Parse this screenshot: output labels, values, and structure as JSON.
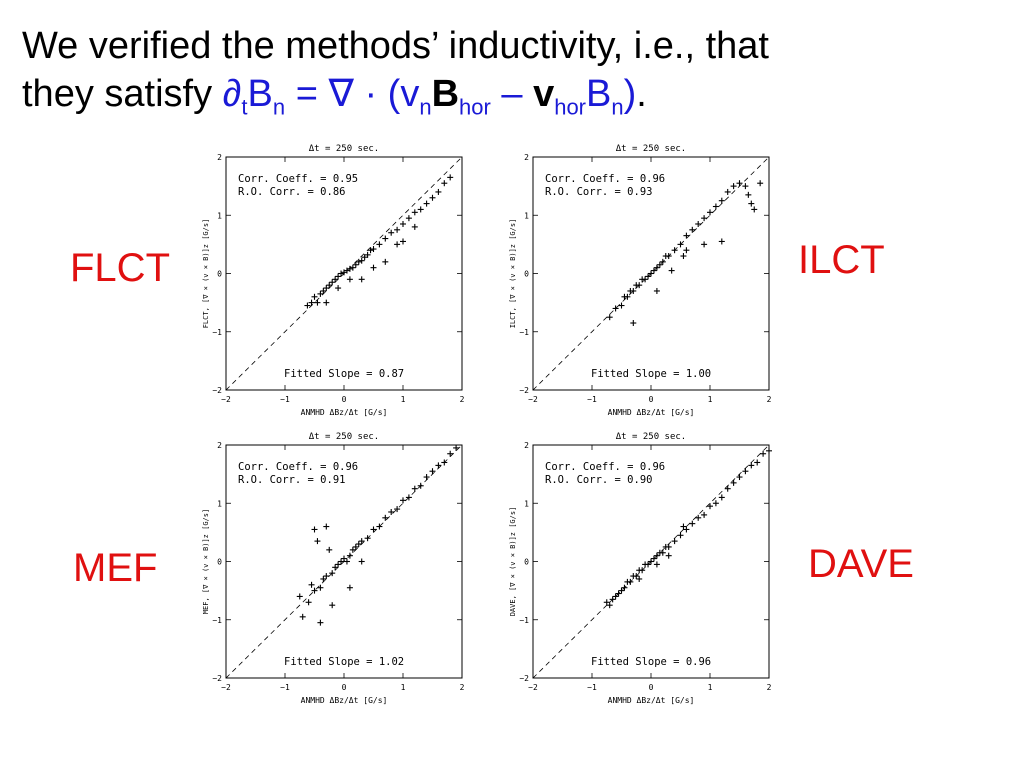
{
  "slide": {
    "title_line1": "We verified the methods’ inductivity, i.e., that",
    "title_line2_prefix": "they satisfy ",
    "eq": {
      "partial": "∂",
      "t_sub": "t",
      "B": "B",
      "n_sub": "n",
      "equals": " = ",
      "nabla_dot": "∇ · (",
      "v": "v",
      "n_sub2": "n",
      "Bbold": "B",
      "hor_sub": "hor",
      "minus": " – ",
      "vbold": "v",
      "hor_sub2": "hor",
      "B2": "B",
      "n_sub3": "n",
      "close": ")"
    },
    "title_end": "."
  },
  "labels": {
    "flct": "FLCT",
    "ilct": "ILCT",
    "mef": "MEF",
    "dave": "DAVE"
  },
  "chart_data": [
    {
      "type": "scatter",
      "method": "FLCT",
      "title": "Δt =  250 sec.",
      "xlabel": "ANMHD  ΔBz/Δt [G/s]",
      "ylabel": "FLCT, [∇ × (v × B)]z [G/s]",
      "xlim": [
        -2,
        2
      ],
      "ylim": [
        -2,
        2
      ],
      "xticks": [
        "−2",
        "−1",
        "0",
        "1",
        "2"
      ],
      "yticks": [
        "−2",
        "−1",
        "0",
        "1",
        "2"
      ],
      "annotations": [
        "Corr. Coeff. = 0.95",
        "R.O. Corr. = 0.86"
      ],
      "fit_label": "Fitted Slope = 0.87",
      "reference_line": "y = x (dashed)",
      "fitted_slope": 0.87,
      "points": [
        [
          -0.62,
          -0.55
        ],
        [
          -0.55,
          -0.5
        ],
        [
          -0.5,
          -0.4
        ],
        [
          -0.45,
          -0.5
        ],
        [
          -0.4,
          -0.35
        ],
        [
          -0.35,
          -0.3
        ],
        [
          -0.3,
          -0.25
        ],
        [
          -0.25,
          -0.2
        ],
        [
          -0.2,
          -0.15
        ],
        [
          -0.15,
          -0.1
        ],
        [
          -0.1,
          -0.05
        ],
        [
          -0.05,
          0.0
        ],
        [
          0.0,
          0.02
        ],
        [
          0.05,
          0.05
        ],
        [
          0.1,
          0.08
        ],
        [
          0.15,
          0.1
        ],
        [
          0.2,
          0.15
        ],
        [
          0.25,
          0.2
        ],
        [
          0.3,
          0.22
        ],
        [
          0.35,
          0.28
        ],
        [
          0.4,
          0.32
        ],
        [
          0.45,
          0.4
        ],
        [
          0.5,
          0.42
        ],
        [
          0.6,
          0.5
        ],
        [
          0.7,
          0.6
        ],
        [
          0.8,
          0.7
        ],
        [
          0.9,
          0.75
        ],
        [
          1.0,
          0.85
        ],
        [
          1.1,
          0.95
        ],
        [
          1.2,
          1.05
        ],
        [
          1.3,
          1.1
        ],
        [
          1.4,
          1.2
        ],
        [
          1.5,
          1.3
        ],
        [
          1.6,
          1.4
        ],
        [
          1.7,
          1.55
        ],
        [
          1.8,
          1.65
        ],
        [
          0.3,
          -0.1
        ],
        [
          0.5,
          0.1
        ],
        [
          0.7,
          0.2
        ],
        [
          0.9,
          0.5
        ],
        [
          1.0,
          0.55
        ],
        [
          1.2,
          0.8
        ],
        [
          -0.3,
          -0.5
        ],
        [
          -0.1,
          -0.25
        ],
        [
          0.1,
          -0.1
        ]
      ]
    },
    {
      "type": "scatter",
      "method": "ILCT",
      "title": "Δt =  250 sec.",
      "xlabel": "ANMHD  ΔBz/Δt [G/s]",
      "ylabel": "ILCT, [∇ × (v × B)]z [G/s]",
      "xlim": [
        -2,
        2
      ],
      "ylim": [
        -2,
        2
      ],
      "xticks": [
        "−2",
        "−1",
        "0",
        "1",
        "2"
      ],
      "yticks": [
        "−2",
        "−1",
        "0",
        "1",
        "2"
      ],
      "annotations": [
        "Corr. Coeff. = 0.96",
        "R.O. Corr. = 0.93"
      ],
      "fit_label": "Fitted Slope = 1.00",
      "reference_line": "y = x (dashed)",
      "fitted_slope": 1.0,
      "points": [
        [
          -0.7,
          -0.75
        ],
        [
          -0.6,
          -0.6
        ],
        [
          -0.5,
          -0.55
        ],
        [
          -0.45,
          -0.4
        ],
        [
          -0.4,
          -0.4
        ],
        [
          -0.35,
          -0.3
        ],
        [
          -0.3,
          -0.3
        ],
        [
          -0.25,
          -0.2
        ],
        [
          -0.2,
          -0.2
        ],
        [
          -0.15,
          -0.1
        ],
        [
          -0.1,
          -0.1
        ],
        [
          -0.05,
          -0.05
        ],
        [
          0.0,
          0.0
        ],
        [
          0.05,
          0.05
        ],
        [
          0.1,
          0.1
        ],
        [
          0.15,
          0.15
        ],
        [
          0.2,
          0.2
        ],
        [
          0.25,
          0.3
        ],
        [
          0.3,
          0.3
        ],
        [
          0.4,
          0.4
        ],
        [
          0.5,
          0.5
        ],
        [
          0.6,
          0.65
        ],
        [
          0.7,
          0.75
        ],
        [
          0.8,
          0.85
        ],
        [
          0.9,
          0.95
        ],
        [
          1.0,
          1.05
        ],
        [
          1.1,
          1.15
        ],
        [
          1.2,
          1.25
        ],
        [
          1.3,
          1.4
        ],
        [
          1.4,
          1.5
        ],
        [
          1.5,
          1.55
        ],
        [
          1.6,
          1.5
        ],
        [
          1.65,
          1.35
        ],
        [
          1.7,
          1.2
        ],
        [
          1.75,
          1.1
        ],
        [
          1.85,
          1.55
        ],
        [
          -0.3,
          -0.85
        ],
        [
          0.1,
          -0.3
        ],
        [
          0.35,
          0.05
        ],
        [
          0.55,
          0.3
        ],
        [
          0.6,
          0.4
        ],
        [
          0.9,
          0.5
        ],
        [
          1.2,
          0.55
        ]
      ]
    },
    {
      "type": "scatter",
      "method": "MEF",
      "title": "Δt =  250 sec.",
      "xlabel": "ANMHD  ΔBz/Δt [G/s]",
      "ylabel": "MEF, [∇ × (v × B)]z [G/s]",
      "xlim": [
        -2,
        2
      ],
      "ylim": [
        -2,
        2
      ],
      "xticks": [
        "−2",
        "−1",
        "0",
        "1",
        "2"
      ],
      "yticks": [
        "−2",
        "−1",
        "0",
        "1",
        "2"
      ],
      "annotations": [
        "Corr. Coeff. = 0.96",
        "R.O. Corr. = 0.91"
      ],
      "fit_label": "Fitted Slope = 1.02",
      "reference_line": "y = x (dashed)",
      "fitted_slope": 1.02,
      "points": [
        [
          -0.75,
          -0.6
        ],
        [
          -0.7,
          -0.95
        ],
        [
          -0.6,
          -0.7
        ],
        [
          -0.55,
          -0.4
        ],
        [
          -0.5,
          -0.5
        ],
        [
          -0.45,
          0.35
        ],
        [
          -0.4,
          -0.45
        ],
        [
          -0.35,
          -0.3
        ],
        [
          -0.3,
          -0.25
        ],
        [
          -0.25,
          0.2
        ],
        [
          -0.2,
          -0.2
        ],
        [
          -0.15,
          -0.1
        ],
        [
          -0.1,
          -0.05
        ],
        [
          -0.05,
          0.0
        ],
        [
          0.0,
          0.05
        ],
        [
          0.05,
          0.0
        ],
        [
          0.1,
          0.1
        ],
        [
          0.15,
          0.2
        ],
        [
          0.2,
          0.25
        ],
        [
          0.25,
          0.3
        ],
        [
          0.3,
          0.35
        ],
        [
          0.4,
          0.4
        ],
        [
          0.5,
          0.55
        ],
        [
          0.6,
          0.6
        ],
        [
          0.7,
          0.75
        ],
        [
          0.8,
          0.85
        ],
        [
          0.9,
          0.9
        ],
        [
          1.0,
          1.05
        ],
        [
          1.1,
          1.1
        ],
        [
          1.2,
          1.25
        ],
        [
          1.3,
          1.3
        ],
        [
          1.4,
          1.45
        ],
        [
          1.5,
          1.55
        ],
        [
          1.6,
          1.65
        ],
        [
          1.7,
          1.7
        ],
        [
          1.8,
          1.85
        ],
        [
          1.9,
          1.95
        ],
        [
          -0.5,
          0.55
        ],
        [
          -0.3,
          0.6
        ],
        [
          -0.2,
          -0.75
        ],
        [
          -0.4,
          -1.05
        ],
        [
          0.1,
          -0.45
        ],
        [
          0.3,
          0.0
        ]
      ]
    },
    {
      "type": "scatter",
      "method": "DAVE",
      "title": "Δt =  250 sec.",
      "xlabel": "ANMHD  ΔBz/Δt [G/s]",
      "ylabel": "DAVE, [∇ × (v × B)]z [G/s]",
      "xlim": [
        -2,
        2
      ],
      "ylim": [
        -2,
        2
      ],
      "xticks": [
        "−2",
        "−1",
        "0",
        "1",
        "2"
      ],
      "yticks": [
        "−2",
        "−1",
        "0",
        "1",
        "2"
      ],
      "annotations": [
        "Corr. Coeff. = 0.96",
        "R.O. Corr. = 0.90"
      ],
      "fit_label": "Fitted Slope = 0.96",
      "reference_line": "y = x (dashed)",
      "fitted_slope": 0.96,
      "points": [
        [
          -0.75,
          -0.7
        ],
        [
          -0.7,
          -0.75
        ],
        [
          -0.65,
          -0.65
        ],
        [
          -0.6,
          -0.6
        ],
        [
          -0.55,
          -0.55
        ],
        [
          -0.5,
          -0.5
        ],
        [
          -0.45,
          -0.45
        ],
        [
          -0.4,
          -0.35
        ],
        [
          -0.35,
          -0.35
        ],
        [
          -0.3,
          -0.25
        ],
        [
          -0.25,
          -0.25
        ],
        [
          -0.2,
          -0.15
        ],
        [
          -0.15,
          -0.15
        ],
        [
          -0.1,
          -0.05
        ],
        [
          -0.05,
          -0.05
        ],
        [
          0.0,
          0.0
        ],
        [
          0.05,
          0.05
        ],
        [
          0.1,
          0.1
        ],
        [
          0.15,
          0.15
        ],
        [
          0.2,
          0.15
        ],
        [
          0.25,
          0.25
        ],
        [
          0.3,
          0.25
        ],
        [
          0.4,
          0.35
        ],
        [
          0.5,
          0.45
        ],
        [
          0.6,
          0.55
        ],
        [
          0.7,
          0.65
        ],
        [
          0.8,
          0.75
        ],
        [
          0.9,
          0.8
        ],
        [
          1.0,
          0.95
        ],
        [
          1.1,
          1.0
        ],
        [
          1.2,
          1.1
        ],
        [
          1.3,
          1.25
        ],
        [
          1.4,
          1.35
        ],
        [
          1.5,
          1.45
        ],
        [
          1.6,
          1.55
        ],
        [
          1.7,
          1.65
        ],
        [
          1.8,
          1.7
        ],
        [
          1.9,
          1.85
        ],
        [
          2.0,
          1.9
        ],
        [
          -0.2,
          -0.3
        ],
        [
          0.1,
          -0.05
        ],
        [
          0.3,
          0.1
        ],
        [
          0.55,
          0.6
        ]
      ]
    }
  ]
}
